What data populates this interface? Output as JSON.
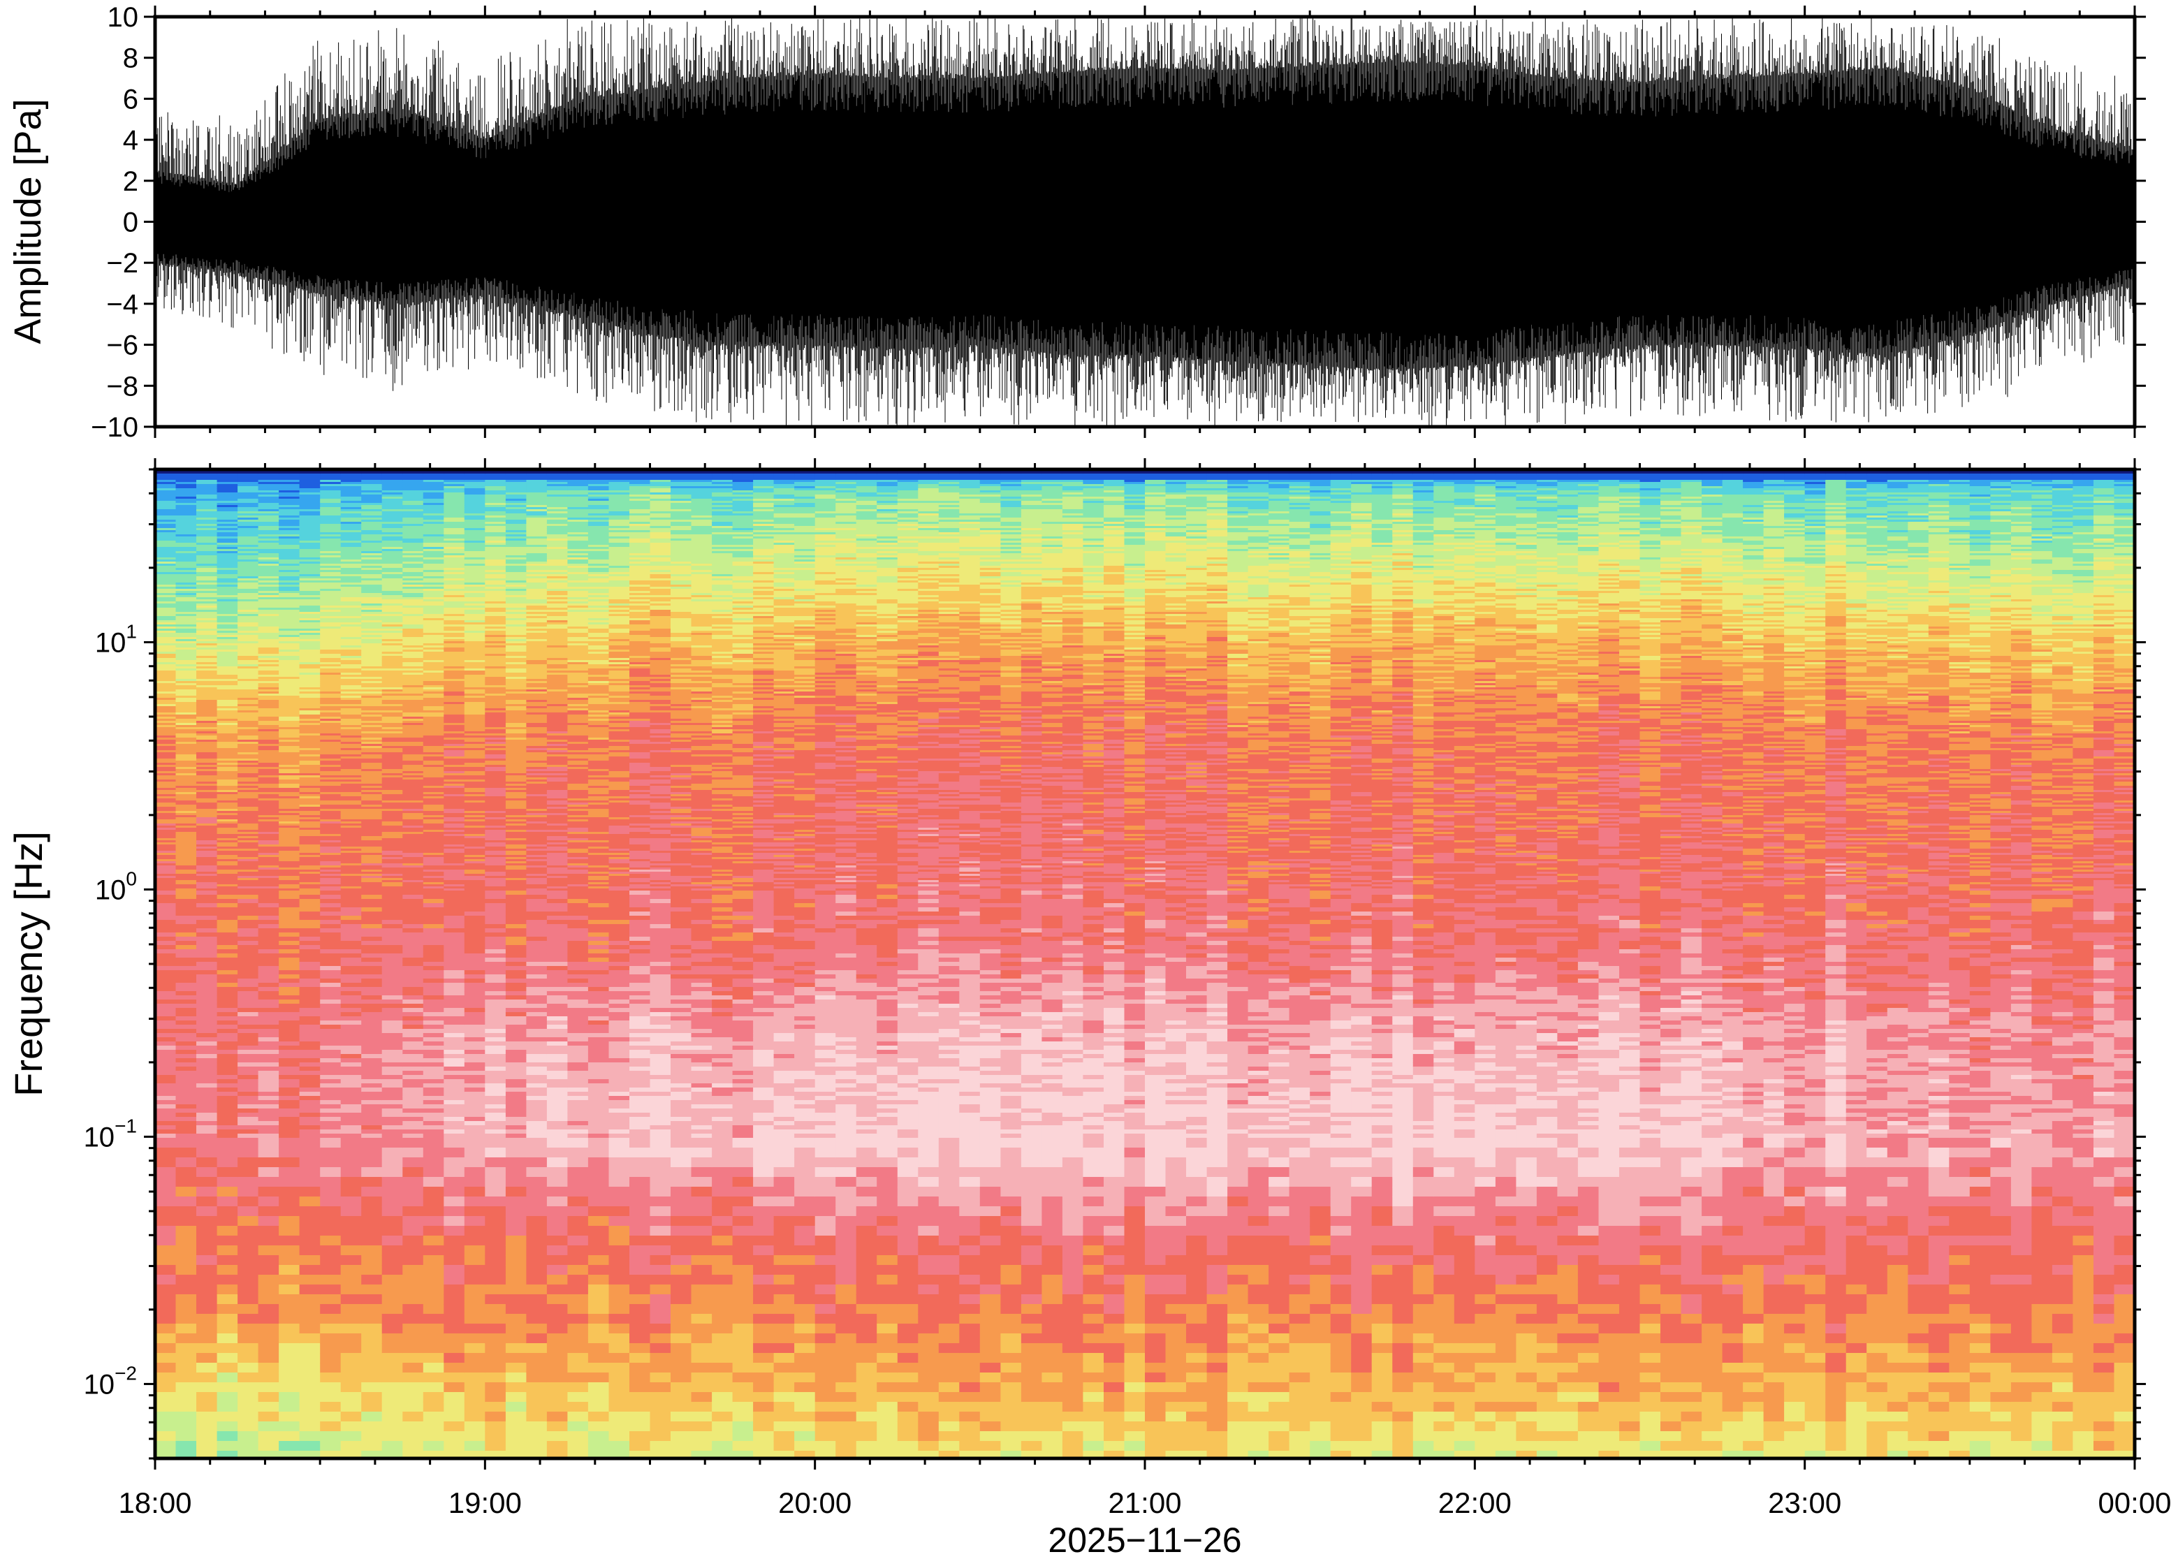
{
  "chart_data": [
    {
      "type": "line",
      "panel": "waveform",
      "ylabel": "Amplitude [Pa]",
      "ylim": [
        -10,
        10
      ],
      "yticks": [
        "10",
        "8",
        "6",
        "4",
        "2",
        "0",
        "−2",
        "−4",
        "−6",
        "−8",
        "−10"
      ],
      "ytick_values": [
        10,
        8,
        6,
        4,
        2,
        0,
        -2,
        -4,
        -6,
        -8,
        -10
      ],
      "xlim": [
        "18:00",
        "00:00"
      ],
      "series_color": "#000000",
      "envelope": {
        "time_hours": [
          0.0,
          0.25,
          0.5,
          0.75,
          1.0,
          1.25,
          1.5,
          1.75,
          2.0,
          2.25,
          2.5,
          2.75,
          3.0,
          3.25,
          3.5,
          3.75,
          4.0,
          4.25,
          4.5,
          4.75,
          5.0,
          5.25,
          5.5,
          5.75,
          6.0
        ],
        "upper": [
          2.5,
          1.8,
          5.0,
          5.5,
          4.0,
          5.8,
          6.5,
          7.0,
          7.2,
          7.0,
          7.0,
          7.3,
          7.5,
          7.4,
          7.6,
          7.8,
          7.6,
          7.0,
          6.8,
          7.0,
          7.2,
          7.5,
          6.5,
          4.5,
          3.5
        ],
        "lower": [
          -2.0,
          -2.5,
          -3.5,
          -4.0,
          -3.5,
          -4.5,
          -5.5,
          -6.0,
          -6.0,
          -6.2,
          -6.0,
          -6.5,
          -6.5,
          -6.8,
          -7.0,
          -7.2,
          -7.0,
          -6.5,
          -6.0,
          -6.0,
          -6.2,
          -6.5,
          -5.5,
          -4.0,
          -3.0
        ],
        "peak_upper": [
          6.0,
          5.0,
          9.0,
          9.5,
          8.0,
          10.0,
          10.0,
          10.0,
          10.0,
          10.0,
          10.0,
          10.0,
          10.0,
          10.0,
          10.0,
          10.0,
          10.0,
          10.0,
          10.0,
          10.0,
          10.0,
          10.0,
          9.5,
          8.0,
          7.0
        ],
        "peak_lower": [
          -4.5,
          -5.5,
          -7.5,
          -8.5,
          -7.0,
          -8.5,
          -9.5,
          -10.0,
          -10.0,
          -10.0,
          -10.0,
          -10.0,
          -10.0,
          -10.0,
          -10.0,
          -10.0,
          -10.0,
          -10.0,
          -9.5,
          -9.5,
          -10.0,
          -10.0,
          -9.5,
          -7.5,
          -6.0
        ]
      }
    },
    {
      "type": "heatmap",
      "panel": "spectrogram",
      "ylabel": "Frequency [Hz]",
      "yscale": "log",
      "ylim": [
        0.005,
        50
      ],
      "yticks": [
        {
          "value": 0.01,
          "base": "10",
          "exp": "−2"
        },
        {
          "value": 0.1,
          "base": "10",
          "exp": "−1"
        },
        {
          "value": 1,
          "base": "10",
          "exp": "0"
        },
        {
          "value": 10,
          "base": "10",
          "exp": "1"
        }
      ],
      "xlim_hours": [
        0,
        6
      ],
      "xticks": [
        "18:00",
        "19:00",
        "20:00",
        "21:00",
        "22:00",
        "23:00",
        "00:00"
      ],
      "xlabel": "2025−11−26",
      "colormap": [
        "#10187a",
        "#1e5fe0",
        "#36a6ef",
        "#55d3dd",
        "#86e6ae",
        "#c8ef8e",
        "#eeea78",
        "#f8c458",
        "#f79a4e",
        "#f26a5a",
        "#f27a86",
        "#f6b0b6",
        "#fbd5d8"
      ],
      "profile_log10f": [
        -2.3,
        -2.0,
        -1.7,
        -1.4,
        -1.0,
        -0.6,
        -0.2,
        0.2,
        0.6,
        1.0,
        1.35,
        1.6,
        1.68,
        1.7
      ],
      "profile_level_start": [
        4.8,
        6.0,
        8.2,
        8.8,
        9.6,
        9.6,
        9.2,
        8.6,
        7.8,
        5.2,
        3.3,
        2.0,
        1.0,
        0.0
      ],
      "profile_level_mid": [
        5.8,
        7.2,
        8.3,
        9.0,
        11.6,
        11.0,
        9.4,
        9.2,
        8.8,
        7.2,
        5.2,
        3.8,
        2.0,
        0.0
      ],
      "profile_level_late": [
        6.0,
        7.6,
        8.6,
        10.0,
        12.0,
        11.4,
        9.8,
        9.3,
        9.0,
        7.6,
        5.6,
        4.0,
        2.0,
        0.0
      ],
      "profile_level_end": [
        6.2,
        7.4,
        8.6,
        9.4,
        10.6,
        10.2,
        9.4,
        9.0,
        8.6,
        6.8,
        4.6,
        3.4,
        1.8,
        0.0
      ]
    }
  ]
}
